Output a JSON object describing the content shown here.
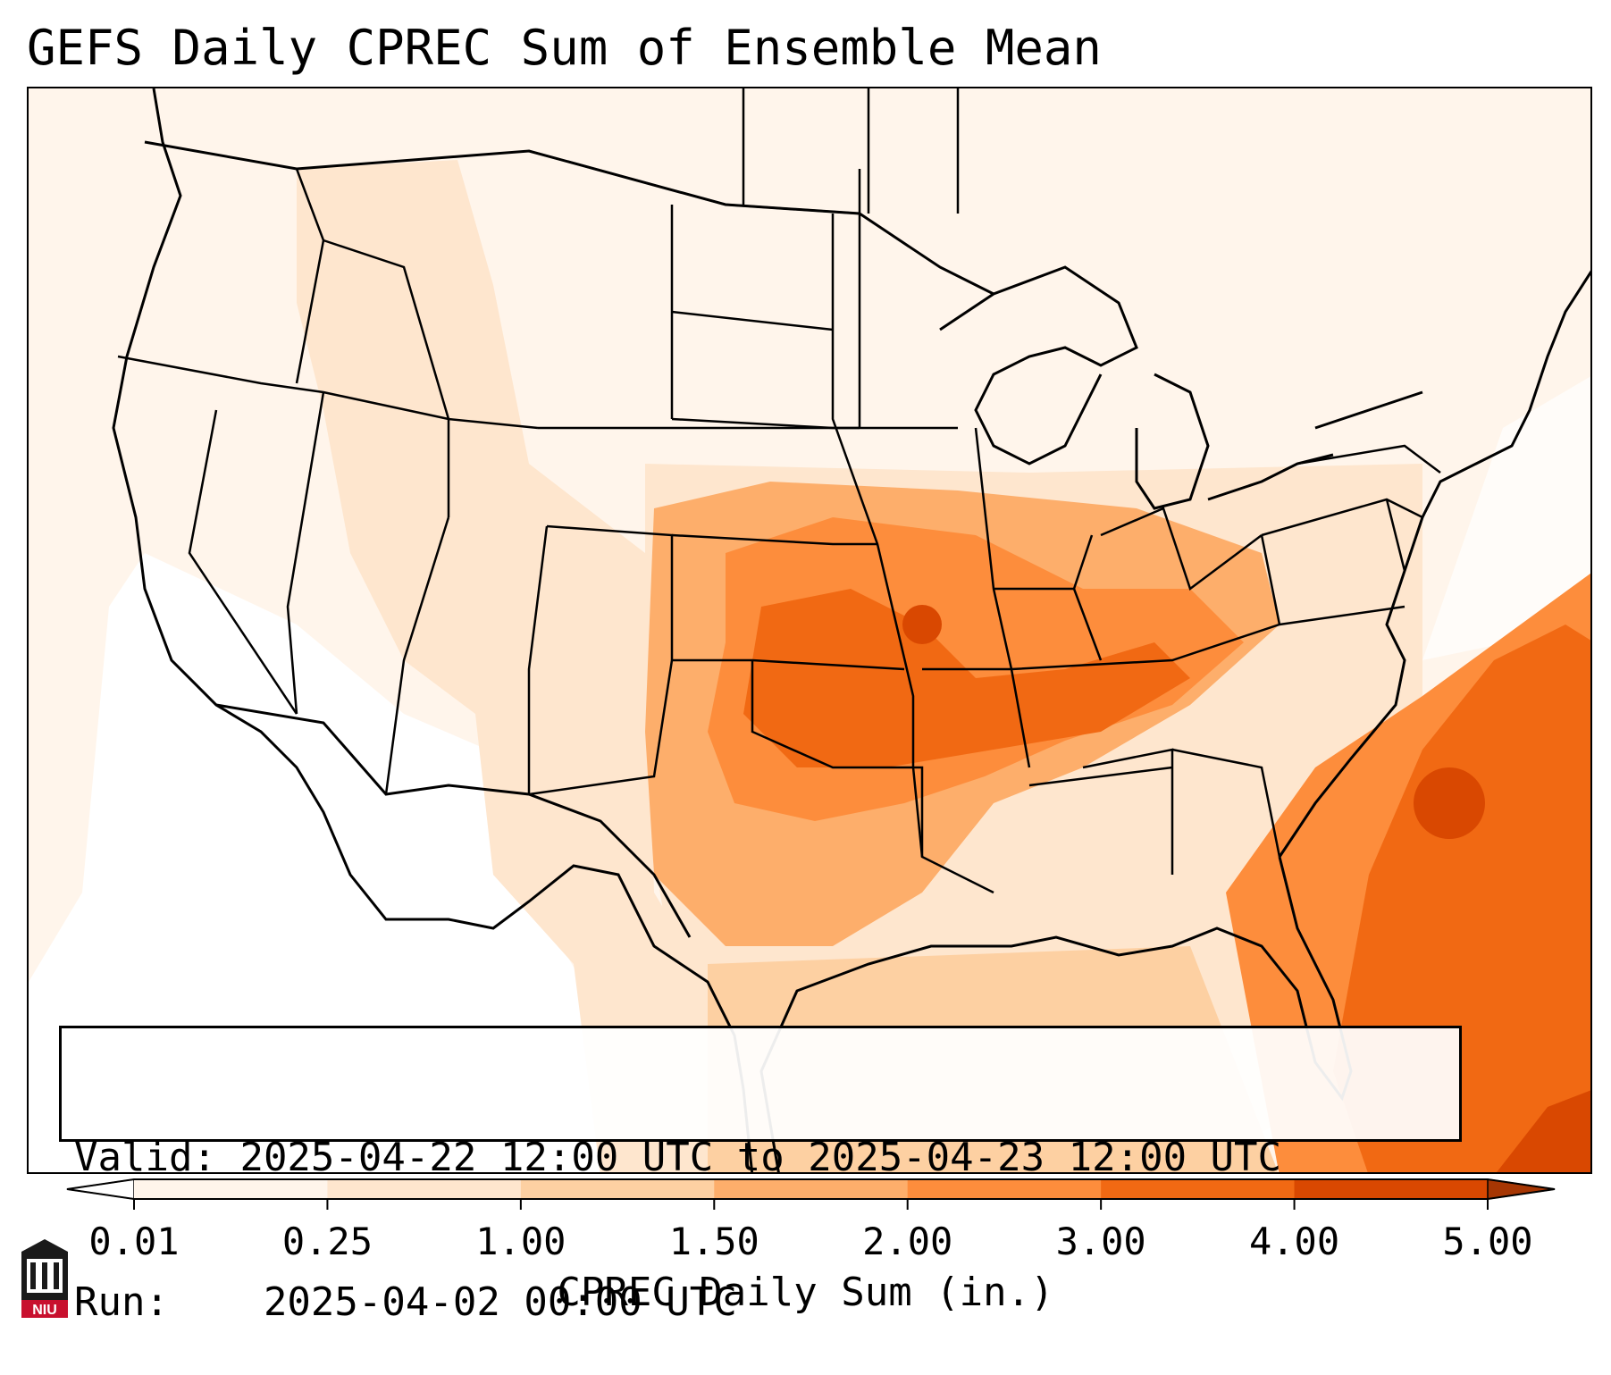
{
  "title": "GEFS Daily CPREC Sum of Ensemble Mean",
  "info": {
    "valid_label": "Valid:",
    "valid_value": "2025-04-22 12:00 UTC to 2025-04-23 12:00 UTC",
    "run_label": "Run:",
    "run_value": "2025-04-02 00:00 UTC"
  },
  "colorbar": {
    "label": "CPREC Daily Sum (in.)",
    "ticks": [
      "0.01",
      "0.25",
      "1.00",
      "1.50",
      "2.00",
      "3.00",
      "4.00",
      "5.00"
    ],
    "colors": [
      "#fff5eb",
      "#fee6ce",
      "#fdd0a2",
      "#fdae6b",
      "#fd8d3c",
      "#f16913",
      "#d94801"
    ],
    "extend_low_color": "#ffffff",
    "extend_high_color": "#a63603"
  },
  "map": {
    "region": "Contiguous United States",
    "background_color": "#fff5eb",
    "ocean_gulf_color": "#fee6ce",
    "boundary_color": "#000000"
  },
  "logo": {
    "text": "NIU",
    "colors": {
      "red": "#c8102e",
      "dark": "#1a1a1a"
    }
  }
}
